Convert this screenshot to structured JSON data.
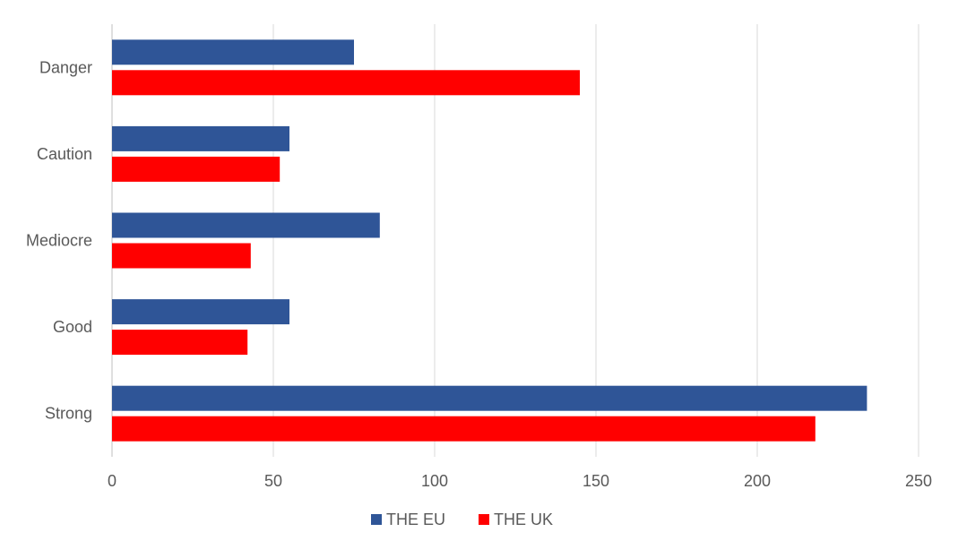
{
  "chart_data": {
    "type": "bar",
    "orientation": "horizontal",
    "categories": [
      "Danger",
      "Caution",
      "Mediocre",
      "Good",
      "Strong"
    ],
    "series": [
      {
        "name": "THE EU",
        "color": "#2F5597",
        "values": [
          75,
          55,
          83,
          55,
          234
        ]
      },
      {
        "name": "THE UK",
        "color": "#FF0000",
        "values": [
          145,
          52,
          43,
          42,
          218
        ]
      }
    ],
    "xlim": [
      0,
      250
    ],
    "xticks": [
      "0",
      "50",
      "100",
      "150",
      "200",
      "250"
    ],
    "grid": true,
    "legend_position": "bottom",
    "title": "",
    "xlabel": "",
    "ylabel": ""
  }
}
